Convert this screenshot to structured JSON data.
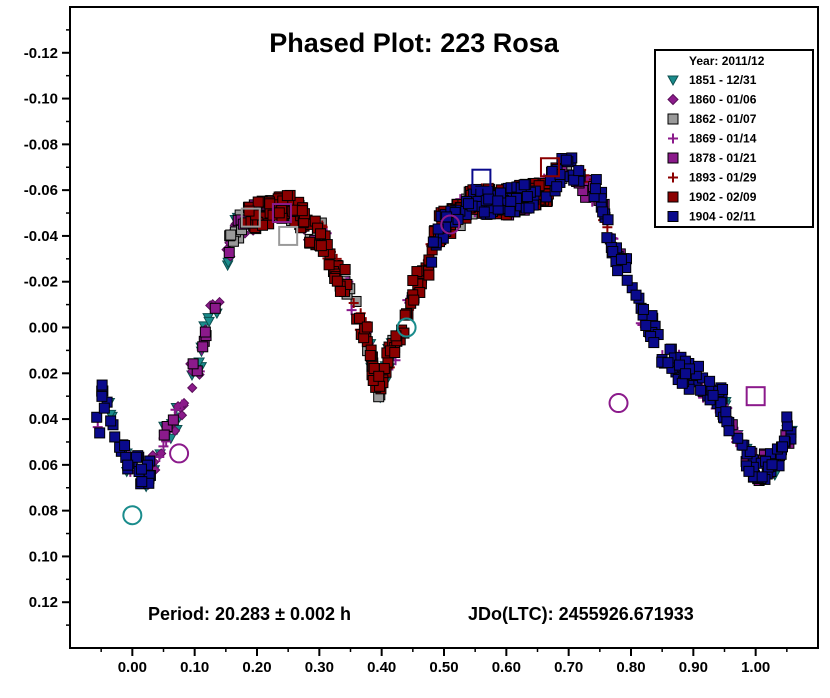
{
  "chart_data": {
    "type": "scatter",
    "title": "Phased Plot: 223 Rosa",
    "xlabel": "",
    "ylabel": "",
    "xlim": [
      -0.1,
      1.1
    ],
    "ylim": [
      0.14,
      -0.14
    ],
    "x_ticks": [
      "0.00",
      "0.10",
      "0.20",
      "0.30",
      "0.40",
      "0.50",
      "0.60",
      "0.70",
      "0.80",
      "0.90",
      "1.00"
    ],
    "y_ticks": [
      "-0.12",
      "-0.10",
      "-0.08",
      "-0.06",
      "-0.04",
      "-0.02",
      "0.00",
      "0.02",
      "0.04",
      "0.06",
      "0.08",
      "0.10",
      "0.12"
    ],
    "y_tick_values": [
      -0.12,
      -0.1,
      -0.08,
      -0.06,
      -0.04,
      -0.02,
      0.0,
      0.02,
      0.04,
      0.06,
      0.08,
      0.1,
      0.12
    ],
    "x_tick_values": [
      0.0,
      0.1,
      0.2,
      0.3,
      0.4,
      0.5,
      0.6,
      0.7,
      0.8,
      0.9,
      1.0
    ],
    "annotation_period": "Period: 20.283 ± 0.002 h",
    "annotation_epoch": "JDo(LTC): 2455926.671933",
    "legend": {
      "title": "Year: 2011/12",
      "placement": "top-right",
      "entries": [
        {
          "label": "1851 - 12/31",
          "marker": "triangle-down",
          "fill": "#1a8c8c",
          "stroke": "#0d4f4f"
        },
        {
          "label": "1860 - 01/06",
          "marker": "diamond",
          "fill": "#8b1a8b",
          "stroke": "#5a0f5a"
        },
        {
          "label": "1862 - 01/07",
          "marker": "square",
          "fill": "#9a9a9a",
          "stroke": "#000000"
        },
        {
          "label": "1869 - 01/14",
          "marker": "plus",
          "fill": "#8b1a8b",
          "stroke": "#8b1a8b"
        },
        {
          "label": "1878 - 01/21",
          "marker": "square",
          "fill": "#8b1a8b",
          "stroke": "#000000"
        },
        {
          "label": "1893 - 01/29",
          "marker": "plus",
          "fill": "#8b0000",
          "stroke": "#8b0000"
        },
        {
          "label": "1902 - 02/09",
          "marker": "square",
          "fill": "#8b0000",
          "stroke": "#000000"
        },
        {
          "label": "1904 - 02/11",
          "marker": "square",
          "fill": "#0a0a8c",
          "stroke": "#000000"
        }
      ]
    },
    "lightcurve_key_points": [
      {
        "phase": -0.05,
        "mag": 0.03
      },
      {
        "phase": 0.0,
        "mag": 0.06
      },
      {
        "phase": 0.02,
        "mag": 0.065
      },
      {
        "phase": 0.06,
        "mag": 0.045
      },
      {
        "phase": 0.1,
        "mag": 0.02
      },
      {
        "phase": 0.13,
        "mag": -0.01
      },
      {
        "phase": 0.17,
        "mag": -0.045
      },
      {
        "phase": 0.21,
        "mag": -0.05
      },
      {
        "phase": 0.25,
        "mag": -0.052
      },
      {
        "phase": 0.3,
        "mag": -0.04
      },
      {
        "phase": 0.34,
        "mag": -0.02
      },
      {
        "phase": 0.37,
        "mag": 0.0
      },
      {
        "phase": 0.395,
        "mag": 0.025
      },
      {
        "phase": 0.42,
        "mag": 0.01
      },
      {
        "phase": 0.46,
        "mag": -0.02
      },
      {
        "phase": 0.5,
        "mag": -0.045
      },
      {
        "phase": 0.55,
        "mag": -0.055
      },
      {
        "phase": 0.6,
        "mag": -0.055
      },
      {
        "phase": 0.65,
        "mag": -0.058
      },
      {
        "phase": 0.7,
        "mag": -0.07
      },
      {
        "phase": 0.74,
        "mag": -0.06
      },
      {
        "phase": 0.78,
        "mag": -0.03
      },
      {
        "phase": 0.82,
        "mag": -0.005
      },
      {
        "phase": 0.86,
        "mag": 0.015
      },
      {
        "phase": 0.9,
        "mag": 0.022
      },
      {
        "phase": 0.94,
        "mag": 0.03
      },
      {
        "phase": 0.97,
        "mag": 0.05
      },
      {
        "phase": 1.0,
        "mag": 0.062
      },
      {
        "phase": 1.03,
        "mag": 0.06
      },
      {
        "phase": 1.05,
        "mag": 0.045
      }
    ],
    "highlighted_points": [
      {
        "phase": 0.0,
        "mag": 0.082,
        "series": 0
      },
      {
        "phase": 0.075,
        "mag": 0.055,
        "series": 1
      },
      {
        "phase": 0.19,
        "mag": -0.048,
        "series": 2
      },
      {
        "phase": 0.25,
        "mag": -0.04,
        "series": 2
      },
      {
        "phase": 0.51,
        "mag": -0.045,
        "series": 3
      },
      {
        "phase": 0.44,
        "mag": 0.0,
        "series": 0
      },
      {
        "phase": 0.78,
        "mag": 0.033,
        "series": 3
      },
      {
        "phase": 1.0,
        "mag": 0.03,
        "series": 4
      },
      {
        "phase": 0.24,
        "mag": -0.05,
        "series": 4
      },
      {
        "phase": 0.56,
        "mag": -0.065,
        "series": 7
      },
      {
        "phase": 0.67,
        "mag": -0.07,
        "series": 6
      }
    ]
  }
}
